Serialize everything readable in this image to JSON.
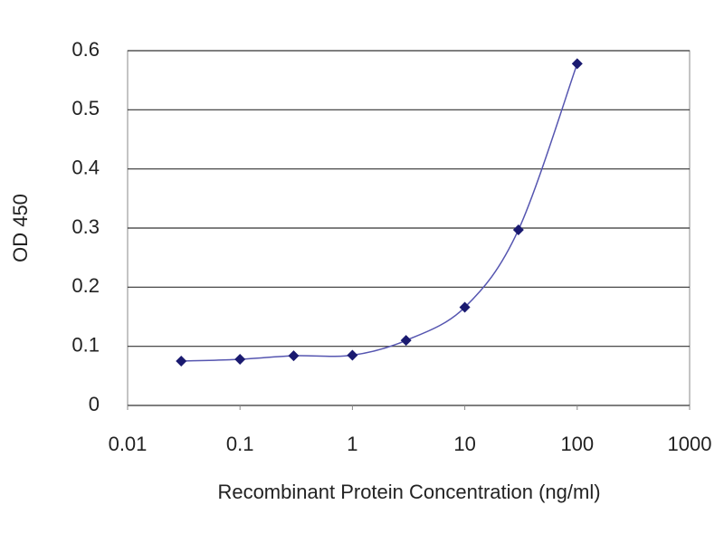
{
  "chart_data": {
    "type": "line",
    "x_label": "Recombinant Protein Concentration (ng/ml)",
    "y_label": "OD 450",
    "x": [
      0.03,
      0.1,
      0.3,
      1,
      3,
      10,
      30,
      100
    ],
    "series": [
      {
        "color": "#1a1a70",
        "values": [
          0.075,
          0.078,
          0.084,
          0.085,
          0.11,
          0.166,
          0.297,
          0.578
        ]
      }
    ],
    "xlim": [
      0.01,
      1000
    ],
    "xticks": [
      0.01,
      0.1,
      1,
      10,
      100,
      1000
    ],
    "xlog": true,
    "ylim": [
      0,
      0.6
    ],
    "yticks": [
      0,
      0.1,
      0.2,
      0.3,
      0.4,
      0.5,
      0.6
    ],
    "grid": true
  }
}
